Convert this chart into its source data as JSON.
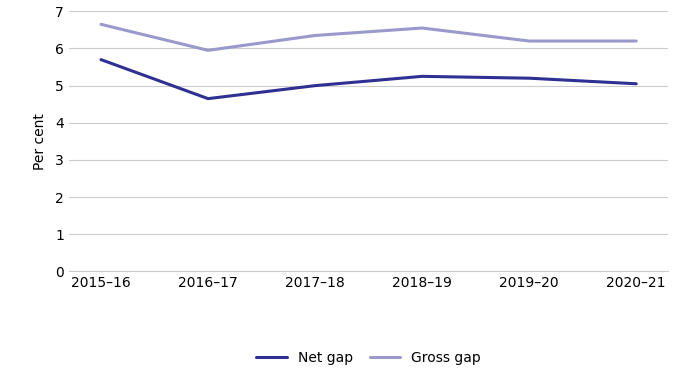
{
  "x_labels": [
    "2015–16",
    "2016–17",
    "2017–18",
    "2018–19",
    "2019–20",
    "2020–21"
  ],
  "net_gap": [
    5.7,
    4.65,
    5.0,
    5.25,
    5.2,
    5.05
  ],
  "gross_gap": [
    6.65,
    5.95,
    6.35,
    6.55,
    6.2,
    6.2
  ],
  "net_gap_color": "#2e3192",
  "gross_gap_color": "#9999cc",
  "net_gap_label": "Net gap",
  "gross_gap_label": "Gross gap",
  "ylabel": "Per cent",
  "ylim": [
    0,
    7
  ],
  "yticks": [
    0,
    1,
    2,
    3,
    4,
    5,
    6,
    7
  ],
  "background_color": "#ffffff",
  "grid_color": "#cccccc",
  "line_width": 2.2,
  "tick_fontsize": 10,
  "label_fontsize": 10,
  "legend_fontsize": 10
}
